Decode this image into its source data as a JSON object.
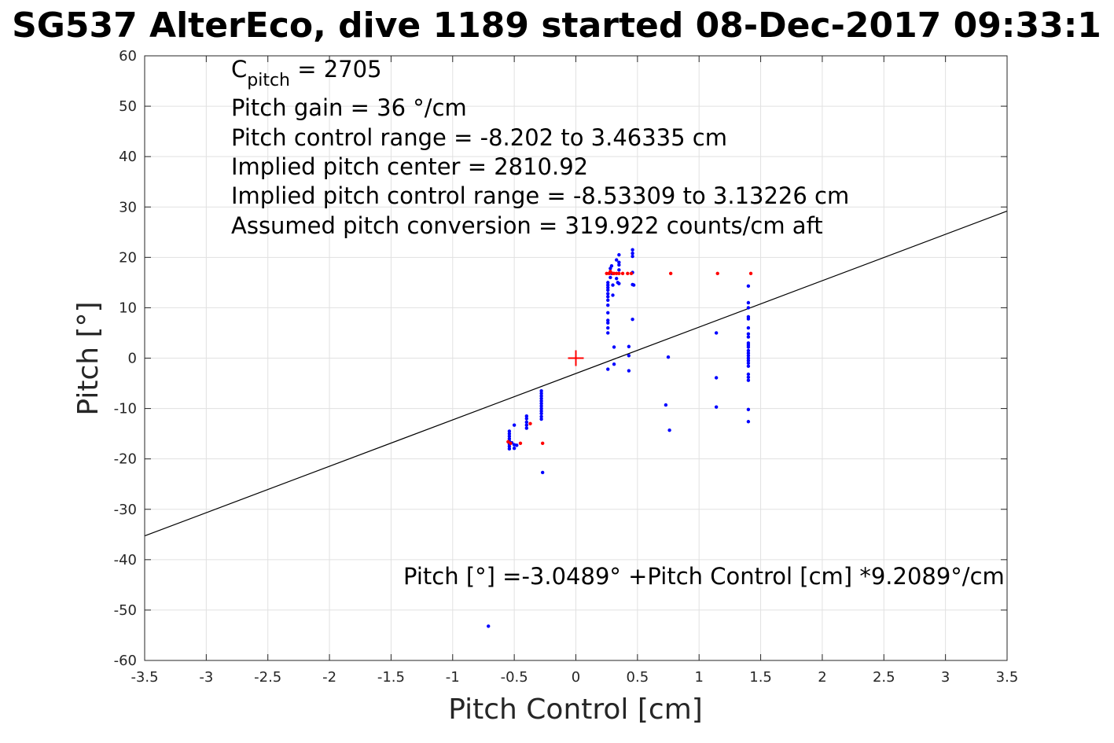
{
  "chart_data": {
    "type": "scatter",
    "title": "SG537 AlterEco, dive 1189 started 08-Dec-2017 09:33:1",
    "xlabel": "Pitch Control [cm]",
    "ylabel": "Pitch [°]",
    "xlim": [
      -3.5,
      3.5
    ],
    "ylim": [
      -60,
      60
    ],
    "xticks": [
      -3.5,
      -3,
      -2.5,
      -2,
      -1.5,
      -1,
      -0.5,
      0,
      0.5,
      1,
      1.5,
      2,
      2.5,
      3,
      3.5
    ],
    "xtick_labels": [
      "-3.5",
      "-3",
      "-2.5",
      "-2",
      "-1.5",
      "-1",
      "-0.5",
      "0",
      "0.5",
      "1",
      "1.5",
      "2",
      "2.5",
      "3",
      "3.5"
    ],
    "yticks": [
      -60,
      -50,
      -40,
      -30,
      -20,
      -10,
      0,
      10,
      20,
      30,
      40,
      50,
      60
    ],
    "ytick_labels": [
      "-60",
      "-50",
      "-40",
      "-30",
      "-20",
      "-10",
      "0",
      "10",
      "20",
      "30",
      "40",
      "50",
      "60"
    ],
    "grid": true,
    "annotations": {
      "c_pitch_main": "C",
      "c_pitch_sub": "pitch",
      "c_pitch_value": " = 2705",
      "lines": [
        "Pitch gain = 36 °/cm",
        "Pitch control range = -8.202 to 3.46335 cm",
        "Implied pitch center = 2810.92",
        "Implied pitch control range = -8.53309 to 3.13226 cm",
        "Assumed pitch conversion = 319.922 counts/cm aft"
      ],
      "fit_equation": "Pitch [°] =-3.0489° +Pitch Control [cm] *9.2089°/cm"
    },
    "fit_line": {
      "intercept": -3.0489,
      "slope": 9.2089,
      "color": "#000000"
    },
    "center_marker": {
      "x": 0,
      "y": 0,
      "color": "#ff0000"
    },
    "series": [
      {
        "color": "#0000ff",
        "points": [
          [
            -0.71,
            -53.2
          ],
          [
            -0.54,
            -14.5
          ],
          [
            -0.54,
            -15
          ],
          [
            -0.54,
            -15.5
          ],
          [
            -0.54,
            -16
          ],
          [
            -0.54,
            -16.5
          ],
          [
            -0.54,
            -17
          ],
          [
            -0.54,
            -17.5
          ],
          [
            -0.54,
            -18
          ],
          [
            -0.52,
            -16.8
          ],
          [
            -0.5,
            -13.3
          ],
          [
            -0.5,
            -17.2
          ],
          [
            -0.5,
            -17.9
          ],
          [
            -0.48,
            -17.3
          ],
          [
            -0.4,
            -11.5
          ],
          [
            -0.4,
            -12
          ],
          [
            -0.4,
            -12.7
          ],
          [
            -0.4,
            -13.3
          ],
          [
            -0.4,
            -13.9
          ],
          [
            -0.28,
            -6.5
          ],
          [
            -0.28,
            -7
          ],
          [
            -0.28,
            -7.5
          ],
          [
            -0.28,
            -8
          ],
          [
            -0.28,
            -8.5
          ],
          [
            -0.28,
            -9
          ],
          [
            -0.28,
            -9.5
          ],
          [
            -0.28,
            -10
          ],
          [
            -0.28,
            -10.5
          ],
          [
            -0.28,
            -11
          ],
          [
            -0.28,
            -11.6
          ],
          [
            -0.28,
            -12.1
          ],
          [
            -0.27,
            -22.7
          ],
          [
            0.26,
            15
          ],
          [
            0.26,
            14.5
          ],
          [
            0.26,
            14
          ],
          [
            0.26,
            13.5
          ],
          [
            0.26,
            12.8
          ],
          [
            0.26,
            12.2
          ],
          [
            0.26,
            11.5
          ],
          [
            0.26,
            10.5
          ],
          [
            0.26,
            9
          ],
          [
            0.26,
            7.5
          ],
          [
            0.26,
            7
          ],
          [
            0.26,
            6
          ],
          [
            0.26,
            5
          ],
          [
            0.26,
            -2.2
          ],
          [
            0.28,
            16
          ],
          [
            0.28,
            17
          ],
          [
            0.28,
            17.8
          ],
          [
            0.29,
            18.3
          ],
          [
            0.29,
            16.8
          ],
          [
            0.3,
            14.5
          ],
          [
            0.3,
            12.5
          ],
          [
            0.31,
            2.2
          ],
          [
            0.31,
            -1.2
          ],
          [
            0.33,
            19.5
          ],
          [
            0.33,
            15.8
          ],
          [
            0.34,
            15
          ],
          [
            0.35,
            20.5
          ],
          [
            0.35,
            19
          ],
          [
            0.35,
            18.5
          ],
          [
            0.35,
            17.5
          ],
          [
            0.35,
            14.8
          ],
          [
            0.43,
            2.3
          ],
          [
            0.43,
            0.5
          ],
          [
            0.43,
            -2.5
          ],
          [
            0.46,
            21.5
          ],
          [
            0.46,
            20.8
          ],
          [
            0.46,
            20.2
          ],
          [
            0.46,
            17
          ],
          [
            0.46,
            14.6
          ],
          [
            0.46,
            7.7
          ],
          [
            0.47,
            14.5
          ],
          [
            0.75,
            0.2
          ],
          [
            0.76,
            -14.3
          ],
          [
            0.73,
            -9.3
          ],
          [
            1.14,
            5
          ],
          [
            1.14,
            -3.9
          ],
          [
            1.14,
            -9.7
          ],
          [
            1.4,
            14.3
          ],
          [
            1.4,
            11
          ],
          [
            1.4,
            10
          ],
          [
            1.4,
            8.2
          ],
          [
            1.4,
            7.8
          ],
          [
            1.4,
            6
          ],
          [
            1.4,
            4.8
          ],
          [
            1.4,
            4.2
          ],
          [
            1.4,
            3
          ],
          [
            1.4,
            2.6
          ],
          [
            1.4,
            2.2
          ],
          [
            1.4,
            1.5
          ],
          [
            1.4,
            1
          ],
          [
            1.4,
            0.5
          ],
          [
            1.4,
            0
          ],
          [
            1.4,
            -0.5
          ],
          [
            1.4,
            -1
          ],
          [
            1.4,
            -1.6
          ],
          [
            1.4,
            -3.2
          ],
          [
            1.4,
            -3.8
          ],
          [
            1.4,
            -4.4
          ],
          [
            1.4,
            -10.2
          ],
          [
            1.4,
            -12.6
          ]
        ]
      },
      {
        "color": "#ff0000",
        "points": [
          [
            -0.55,
            -16.6
          ],
          [
            -0.53,
            -16.9
          ],
          [
            -0.45,
            -16.9
          ],
          [
            -0.37,
            -13
          ],
          [
            -0.27,
            -16.9
          ],
          [
            0.25,
            16.8
          ],
          [
            0.27,
            16.8
          ],
          [
            0.28,
            17.2
          ],
          [
            0.3,
            16.8
          ],
          [
            0.31,
            16.8
          ],
          [
            0.33,
            16.8
          ],
          [
            0.35,
            16.8
          ],
          [
            0.38,
            16.8
          ],
          [
            0.42,
            16.8
          ],
          [
            0.45,
            16.8
          ],
          [
            0.77,
            16.8
          ],
          [
            1.15,
            16.8
          ],
          [
            1.42,
            16.8
          ]
        ]
      }
    ]
  }
}
